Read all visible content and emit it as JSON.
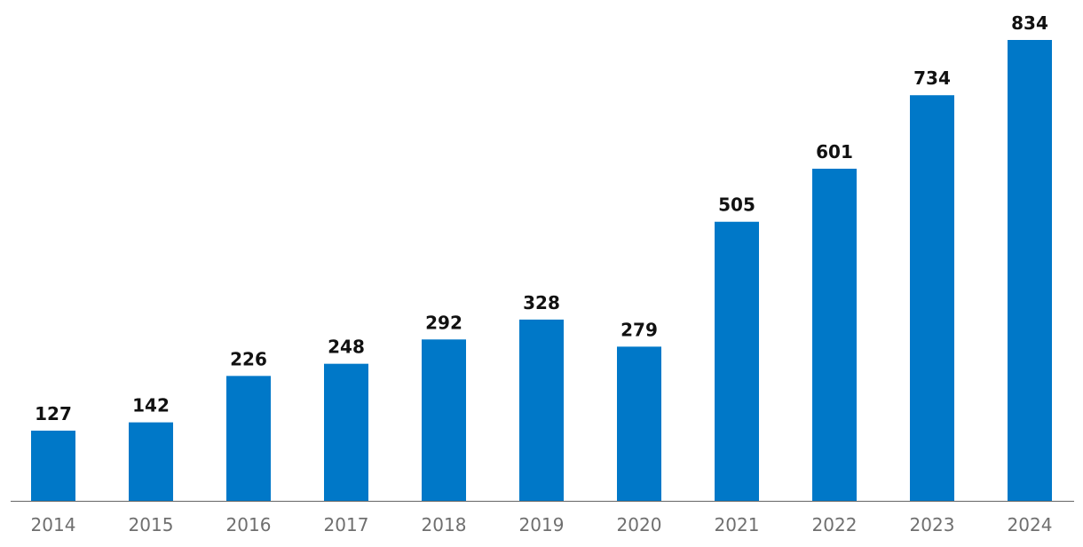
{
  "chart_data": {
    "type": "bar",
    "categories": [
      "2014",
      "2015",
      "2016",
      "2017",
      "2018",
      "2019",
      "2020",
      "2021",
      "2022",
      "2023",
      "2024"
    ],
    "values": [
      127,
      142,
      226,
      248,
      292,
      328,
      279,
      505,
      601,
      734,
      834
    ],
    "title": "",
    "xlabel": "",
    "ylabel": "",
    "ylim": [
      0,
      834
    ],
    "grid": false,
    "legend": "none",
    "bar_color": "#0078C8",
    "axis_color": "#666666",
    "value_label_color": "#111111",
    "tick_label_color": "#6F6F6F"
  }
}
